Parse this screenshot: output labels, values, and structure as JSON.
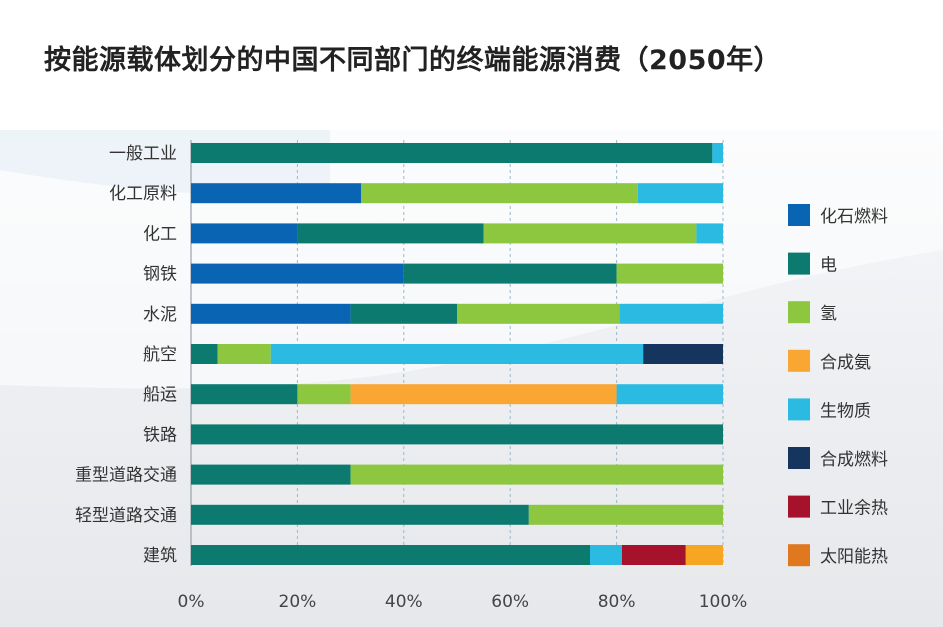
{
  "title": "按能源载体划分的中国不同部门的终端能源消费（2050年）",
  "chart_data": {
    "type": "bar",
    "orientation": "horizontal",
    "stacked": true,
    "title": "按能源载体划分的中国不同部门的终端能源消费（2050年）",
    "xlabel": "",
    "ylabel": "",
    "xlim": [
      0,
      100
    ],
    "x_ticks": [
      "0%",
      "20%",
      "40%",
      "60%",
      "80%",
      "100%"
    ],
    "grid": "vertical dashed",
    "legend_position": "right",
    "categories": [
      "一般工业",
      "化工原料",
      "化工",
      "钢铁",
      "水泥",
      "航空",
      "船运",
      "铁路",
      "重型道路交通",
      "轻型道路交通",
      "建筑"
    ],
    "series": [
      {
        "name": "化石燃料",
        "color": "#0a64b4",
        "values": [
          0,
          32,
          20,
          40,
          30,
          0,
          0,
          0,
          0,
          0,
          0
        ]
      },
      {
        "name": "电",
        "color": "#0c7a6e",
        "values": [
          98,
          0,
          35,
          40,
          20,
          5,
          20,
          100,
          30,
          63.5,
          75
        ]
      },
      {
        "name": "氢",
        "color": "#8dc63f",
        "values": [
          0,
          52,
          40,
          20,
          30.5,
          10,
          10,
          0,
          70,
          36.5,
          0
        ]
      },
      {
        "name": "合成氨",
        "color": "#f9a633",
        "values": [
          0,
          0,
          0,
          0,
          0,
          0,
          50,
          0,
          0,
          0,
          0
        ]
      },
      {
        "name": "生物质",
        "color": "#2bbbe2",
        "values": [
          2,
          16,
          5,
          0,
          19.5,
          70,
          20,
          0,
          0,
          0,
          6
        ]
      },
      {
        "name": "合成燃料",
        "color": "#16355e",
        "values": [
          0,
          0,
          0,
          0,
          0,
          15,
          0,
          0,
          0,
          0,
          0
        ]
      },
      {
        "name": "工业余热",
        "color": "#a6122b",
        "values": [
          0,
          0,
          0,
          0,
          0,
          0,
          0,
          0,
          0,
          0,
          12
        ]
      },
      {
        "name": "太阳能热",
        "color": "#f6a623",
        "values": [
          0,
          0,
          0,
          0,
          0,
          0,
          0,
          0,
          0,
          0,
          7
        ]
      }
    ],
    "legend_colors": [
      "#0a64b4",
      "#0c7a6e",
      "#8dc63f",
      "#f9a633",
      "#2bbbe2",
      "#16355e",
      "#a6122b",
      "#e07820"
    ]
  }
}
